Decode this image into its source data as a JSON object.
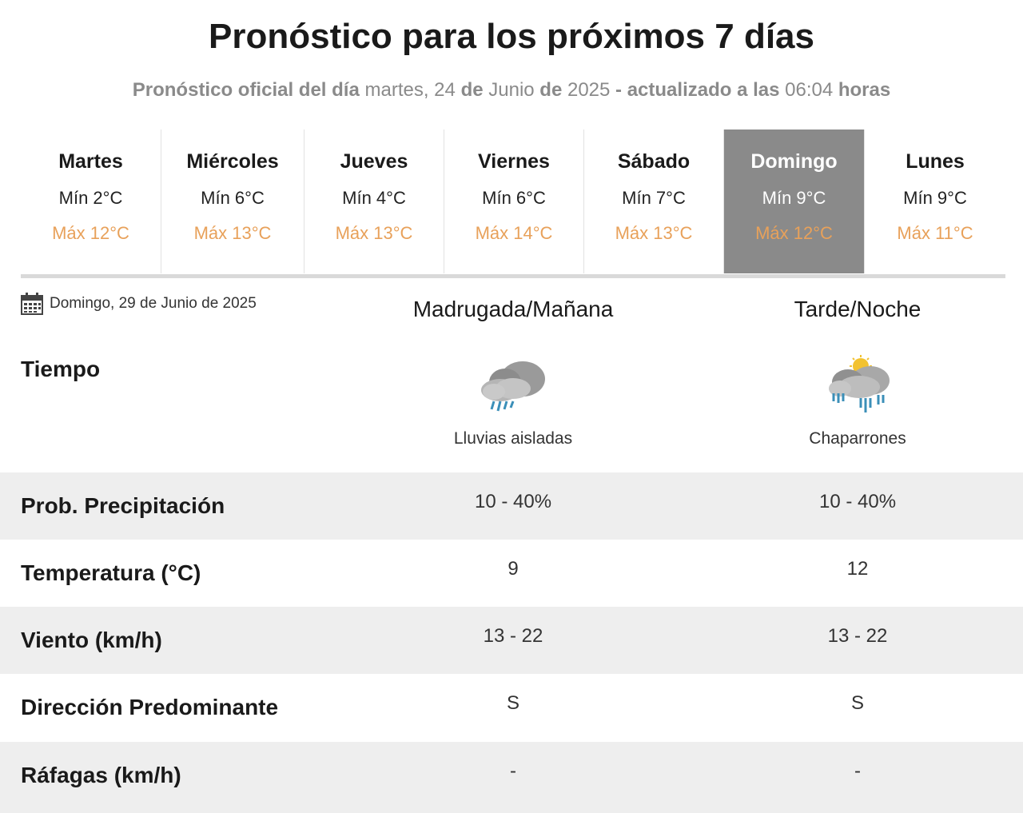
{
  "header": {
    "title": "Pronóstico para los próximos 7 días",
    "sub_prefix": "Pronóstico oficial del día",
    "sub_weekday": "martes, 24",
    "sub_de1": "de",
    "sub_month": "Junio",
    "sub_de2": "de",
    "sub_year": "2025",
    "sub_updated": "- actualizado a las",
    "sub_time": "06:04",
    "sub_hours": "horas"
  },
  "days": [
    {
      "name": "Martes",
      "min": "Mín 2°C",
      "max": "Máx 12°C"
    },
    {
      "name": "Miércoles",
      "min": "Mín 6°C",
      "max": "Máx 13°C"
    },
    {
      "name": "Jueves",
      "min": "Mín 4°C",
      "max": "Máx 13°C"
    },
    {
      "name": "Viernes",
      "min": "Mín 6°C",
      "max": "Máx 14°C"
    },
    {
      "name": "Sábado",
      "min": "Mín 7°C",
      "max": "Máx 13°C"
    },
    {
      "name": "Domingo",
      "min": "Mín 9°C",
      "max": "Máx 12°C"
    },
    {
      "name": "Lunes",
      "min": "Mín 9°C",
      "max": "Máx 11°C"
    }
  ],
  "selected_day": "Domingo",
  "detail": {
    "date": "Domingo, 29 de Junio de 2025",
    "col_a": "Madrugada/Mañana",
    "col_b": "Tarde/Noche",
    "tiempo_label": "Tiempo",
    "weather_a": {
      "icon": "rain-cloud-icon",
      "desc": "Lluvias aisladas"
    },
    "weather_b": {
      "icon": "showers-sun-cloud-icon",
      "desc": "Chaparrones"
    },
    "rows": [
      {
        "label": "Prob. Precipitación",
        "a": "10 - 40%",
        "b": "10 - 40%"
      },
      {
        "label": "Temperatura (°C)",
        "a": "9",
        "b": "12"
      },
      {
        "label": "Viento (km/h)",
        "a": "13 - 22",
        "b": "13 - 22"
      },
      {
        "label": "Dirección Predominante",
        "a": "S",
        "b": "S"
      },
      {
        "label": "Ráfagas (km/h)",
        "a": "-",
        "b": "-"
      }
    ]
  },
  "colors": {
    "max_temp": "#e8a15a",
    "active_day_bg": "#8a8a8a",
    "row_shade": "#eeeeee"
  }
}
